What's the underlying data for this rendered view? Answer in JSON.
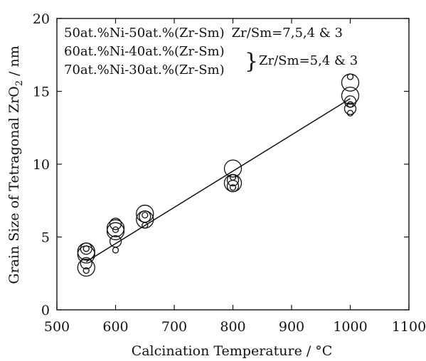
{
  "chart_data": {
    "type": "scatter",
    "title": "",
    "xlabel": "Calcination Temperature",
    "xlabel_unit": "/ °C",
    "ylabel": "Grain Size of Tetragonal ZrO",
    "ylabel_subscript": "2",
    "ylabel_unit": "/ nm",
    "xlim": [
      500,
      1100
    ],
    "ylim": [
      0,
      20
    ],
    "xticks": [
      500,
      600,
      700,
      800,
      900,
      1000,
      1100
    ],
    "yticks": [
      0,
      5,
      10,
      15,
      20
    ],
    "grid": false,
    "annotations": [
      {
        "text": "50at.%Ni-50at.%(Zr-Sm)",
        "group_text": "Zr/Sm=7,5,4 & 3"
      },
      {
        "text": "60at.%Ni-40at.%(Zr-Sm)",
        "group_text": "Zr/Sm=5,4 & 3"
      },
      {
        "text": "70at.%Ni-30at.%(Zr-Sm)",
        "group_text": ""
      }
    ],
    "annotation_brace": "}",
    "series": [
      {
        "marker": "open-circle",
        "points": [
          {
            "x": 550,
            "y": 4.2,
            "size": "medium"
          },
          {
            "x": 550,
            "y": 4.0,
            "size": "large"
          },
          {
            "x": 550,
            "y": 3.8,
            "size": "large"
          },
          {
            "x": 550,
            "y": 4.2,
            "size": "small"
          },
          {
            "x": 550,
            "y": 3.2,
            "size": "medium"
          },
          {
            "x": 550,
            "y": 2.9,
            "size": "large"
          },
          {
            "x": 550,
            "y": 2.7,
            "size": "small"
          },
          {
            "x": 600,
            "y": 5.9,
            "size": "medium"
          },
          {
            "x": 600,
            "y": 5.6,
            "size": "large"
          },
          {
            "x": 600,
            "y": 5.5,
            "size": "small"
          },
          {
            "x": 600,
            "y": 5.4,
            "size": "large"
          },
          {
            "x": 600,
            "y": 4.7,
            "size": "medium"
          },
          {
            "x": 600,
            "y": 4.1,
            "size": "small"
          },
          {
            "x": 650,
            "y": 6.6,
            "size": "large"
          },
          {
            "x": 650,
            "y": 6.5,
            "size": "small"
          },
          {
            "x": 650,
            "y": 6.4,
            "size": "medium"
          },
          {
            "x": 650,
            "y": 6.2,
            "size": "large"
          },
          {
            "x": 650,
            "y": 5.8,
            "size": "small"
          },
          {
            "x": 800,
            "y": 9.7,
            "size": "large"
          },
          {
            "x": 800,
            "y": 9.1,
            "size": "small"
          },
          {
            "x": 800,
            "y": 8.9,
            "size": "medium"
          },
          {
            "x": 800,
            "y": 8.7,
            "size": "large"
          },
          {
            "x": 800,
            "y": 8.5,
            "size": "medium"
          },
          {
            "x": 800,
            "y": 8.4,
            "size": "small"
          },
          {
            "x": 1000,
            "y": 16.0,
            "size": "small"
          },
          {
            "x": 1000,
            "y": 15.6,
            "size": "large"
          },
          {
            "x": 1000,
            "y": 14.7,
            "size": "large"
          },
          {
            "x": 1000,
            "y": 14.3,
            "size": "medium"
          },
          {
            "x": 1000,
            "y": 14.1,
            "size": "small"
          },
          {
            "x": 1000,
            "y": 13.8,
            "size": "medium"
          },
          {
            "x": 1000,
            "y": 13.5,
            "size": "small"
          }
        ]
      }
    ],
    "trendline": {
      "x": [
        550,
        1000
      ],
      "y": [
        3.3,
        14.5
      ]
    }
  }
}
